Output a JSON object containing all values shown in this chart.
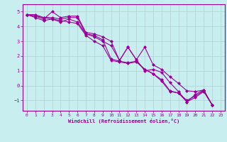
{
  "title": "",
  "xlabel": "Windchill (Refroidissement éolien,°C)",
  "ylabel": "",
  "bg_color": "#c8eef0",
  "grid_color": "#b0d0d0",
  "line_color": "#990099",
  "xlim": [
    -0.5,
    23.5
  ],
  "ylim": [
    -1.7,
    5.5
  ],
  "xticks": [
    0,
    1,
    2,
    3,
    4,
    5,
    6,
    7,
    8,
    9,
    10,
    11,
    12,
    13,
    14,
    15,
    16,
    17,
    18,
    19,
    20,
    21,
    22,
    23
  ],
  "yticks": [
    -1,
    0,
    1,
    2,
    3,
    4,
    5
  ],
  "series": [
    [
      4.8,
      4.8,
      4.6,
      4.6,
      4.5,
      4.6,
      4.6,
      3.5,
      3.4,
      3.1,
      1.8,
      1.65,
      1.55,
      1.65,
      1.1,
      0.8,
      0.4,
      -0.35,
      -0.5,
      -1.0,
      -0.7,
      -0.35,
      -1.3
    ],
    [
      4.8,
      4.7,
      4.5,
      5.0,
      4.6,
      4.7,
      4.7,
      3.6,
      3.5,
      3.3,
      3.0,
      1.7,
      2.6,
      1.75,
      2.6,
      1.4,
      1.1,
      0.6,
      0.15,
      -0.35,
      -0.4,
      -0.3,
      -1.3
    ],
    [
      4.8,
      4.6,
      4.4,
      4.5,
      4.3,
      4.5,
      4.3,
      3.5,
      3.3,
      3.0,
      2.7,
      1.7,
      2.6,
      1.75,
      1.0,
      1.1,
      0.9,
      0.2,
      -0.4,
      -1.1,
      -0.6,
      -0.3,
      -1.3
    ],
    [
      4.8,
      4.7,
      4.6,
      4.5,
      4.4,
      4.3,
      4.2,
      3.4,
      3.0,
      2.7,
      1.7,
      1.6,
      1.5,
      1.6,
      1.1,
      0.8,
      0.3,
      -0.4,
      -0.5,
      -1.1,
      -0.8,
      -0.4,
      -1.3
    ]
  ],
  "marker": "D",
  "markersize": 2.0,
  "linewidth": 0.8
}
